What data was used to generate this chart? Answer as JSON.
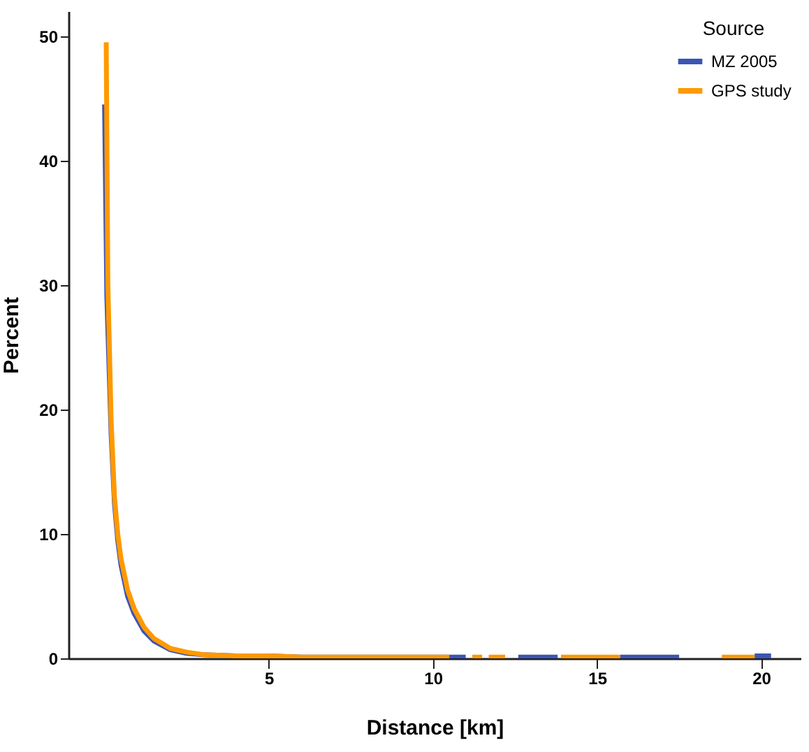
{
  "chart_data": {
    "type": "line",
    "xlabel": "Distance [km]",
    "ylabel": "Percent",
    "legend_title": "Source",
    "legend": "top right",
    "grid": false,
    "marker": "none",
    "line_style": "solid",
    "xlim": [
      -1.1,
      21.2
    ],
    "xticks": [
      5,
      10,
      15,
      20
    ],
    "ylim": [
      0,
      52
    ],
    "yticks": [
      0,
      10,
      20,
      30,
      40,
      50
    ],
    "series": [
      {
        "name": "MZ 2005",
        "color": "#3b55b5",
        "x": [
          0,
          0.07,
          0.2,
          0.3,
          0.4,
          0.5,
          0.7,
          0.9,
          1.2,
          1.5,
          2,
          2.5,
          3,
          4,
          5,
          6,
          7,
          8,
          9,
          10,
          11,
          12,
          12.6,
          13.8,
          14.5,
          15.7,
          17.5,
          18.5,
          19.8,
          20.3
        ],
        "values": [
          44.5,
          29,
          18,
          12.5,
          9.5,
          7.5,
          5,
          3.6,
          2.2,
          1.4,
          0.7,
          0.4,
          0.3,
          0.2,
          0.2,
          0.1,
          0.1,
          0.1,
          0.1,
          0.1,
          0.1,
          null,
          0.1,
          0.1,
          null,
          0.1,
          0.1,
          null,
          0.2,
          0.2
        ]
      },
      {
        "name": "GPS study",
        "color": "#ff9900",
        "x": [
          0.05,
          0.1,
          0.2,
          0.3,
          0.4,
          0.5,
          0.7,
          0.9,
          1.2,
          1.5,
          2,
          2.5,
          3,
          4,
          5,
          6,
          7,
          8,
          9,
          10,
          10.5,
          10.8,
          11.2,
          11.5,
          11.6,
          11.7,
          12.2,
          12.4,
          13.9,
          15.7,
          17,
          18.8,
          19.8
        ],
        "values": [
          49.5,
          30,
          19,
          13,
          10,
          8,
          5.5,
          4,
          2.5,
          1.6,
          0.8,
          0.5,
          0.3,
          0.2,
          0.2,
          0.1,
          0.1,
          0.1,
          0.1,
          0.1,
          0.1,
          null,
          0.1,
          0.1,
          null,
          0.1,
          0.1,
          null,
          0.1,
          0.1,
          null,
          0.1,
          0.1
        ]
      }
    ]
  }
}
